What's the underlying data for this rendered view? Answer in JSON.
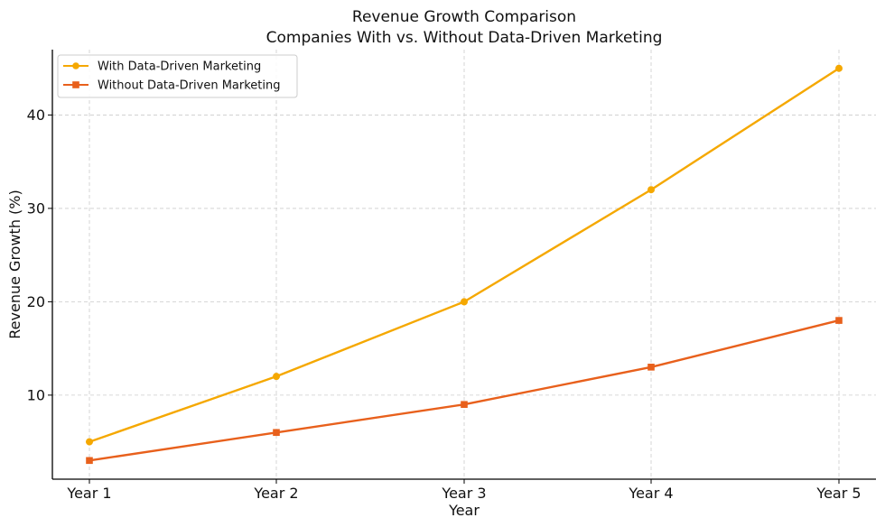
{
  "chart_data": {
    "type": "line",
    "title": "Revenue Growth Comparison",
    "subtitle": "Companies With vs. Without Data-Driven Marketing",
    "xlabel": "Year",
    "ylabel": "Revenue Growth (%)",
    "categories": [
      "Year 1",
      "Year 2",
      "Year 3",
      "Year 4",
      "Year 5"
    ],
    "yticks": [
      10,
      20,
      30,
      40
    ],
    "ylim": [
      1,
      47
    ],
    "grid": true,
    "legend": "top-left",
    "series": [
      {
        "name": "With Data-Driven Marketing",
        "values": [
          5,
          12,
          20,
          32,
          45
        ],
        "color": "#F5A800",
        "marker": "circle"
      },
      {
        "name": "Without Data-Driven Marketing",
        "values": [
          3,
          6,
          9,
          13,
          18
        ],
        "color": "#E8601C",
        "marker": "square"
      }
    ]
  }
}
